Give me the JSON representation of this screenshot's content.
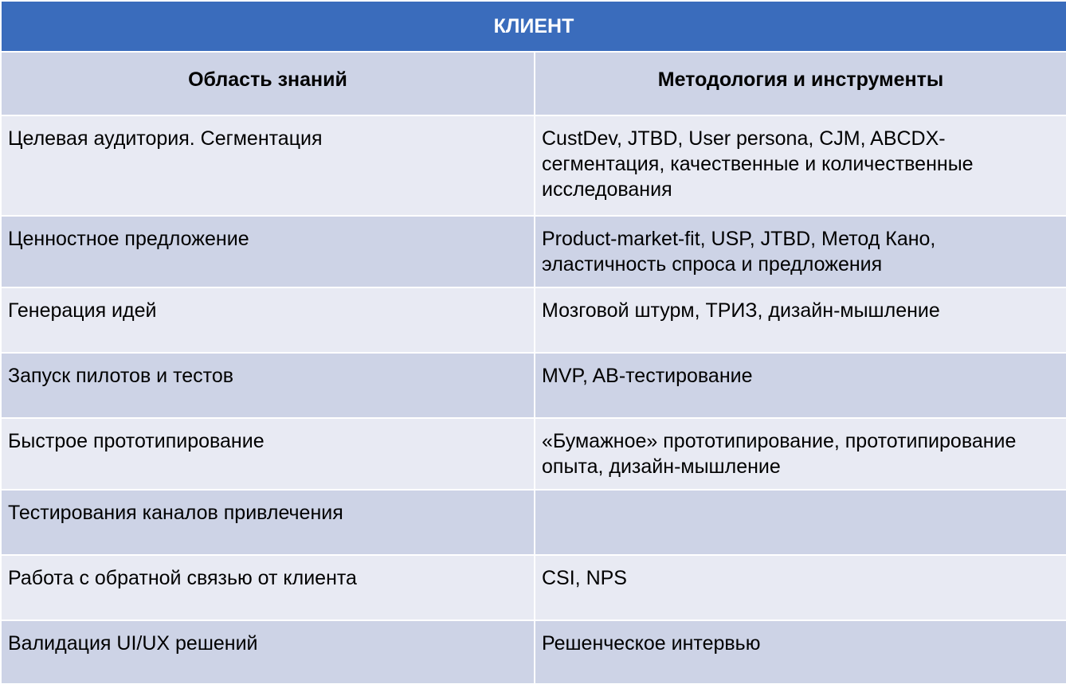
{
  "table": {
    "title": "КЛИЕНТ",
    "headers": {
      "area": "Область знаний",
      "methods": "Методология и инструменты"
    },
    "rows": [
      {
        "area": "Целевая аудитория. Сегментация",
        "methods": "CustDev, JTBD, User persona, CJM, ABCDX-сегментация, качественные и количественные исследования"
      },
      {
        "area": "Ценностное предложение",
        "methods": "Product-market-fit, USP, JTBD, Метод Кано, эластичность спроса и предложения"
      },
      {
        "area": "Генерация идей",
        "methods": "Мозговой штурм, ТРИЗ, дизайн-мышление"
      },
      {
        "area": "Запуск пилотов и тестов",
        "methods": "MVP, AB-тестирование"
      },
      {
        "area": "Быстрое прототипирование",
        "methods": "«Бумажное» прототипирование, прототипирование опыта, дизайн-мышление"
      },
      {
        "area": "Тестирования каналов привлечения",
        "methods": ""
      },
      {
        "area": "Работа с обратной связью от клиента",
        "methods": "CSI, NPS"
      },
      {
        "area": "Валидация UI/UX решений",
        "methods": "Решенческое интервью"
      }
    ]
  },
  "colors": {
    "title_bg": "#3a6cbc",
    "header_bg": "#cdd3e6",
    "row_light": "#e8eaf3",
    "row_dark": "#cdd3e6"
  }
}
